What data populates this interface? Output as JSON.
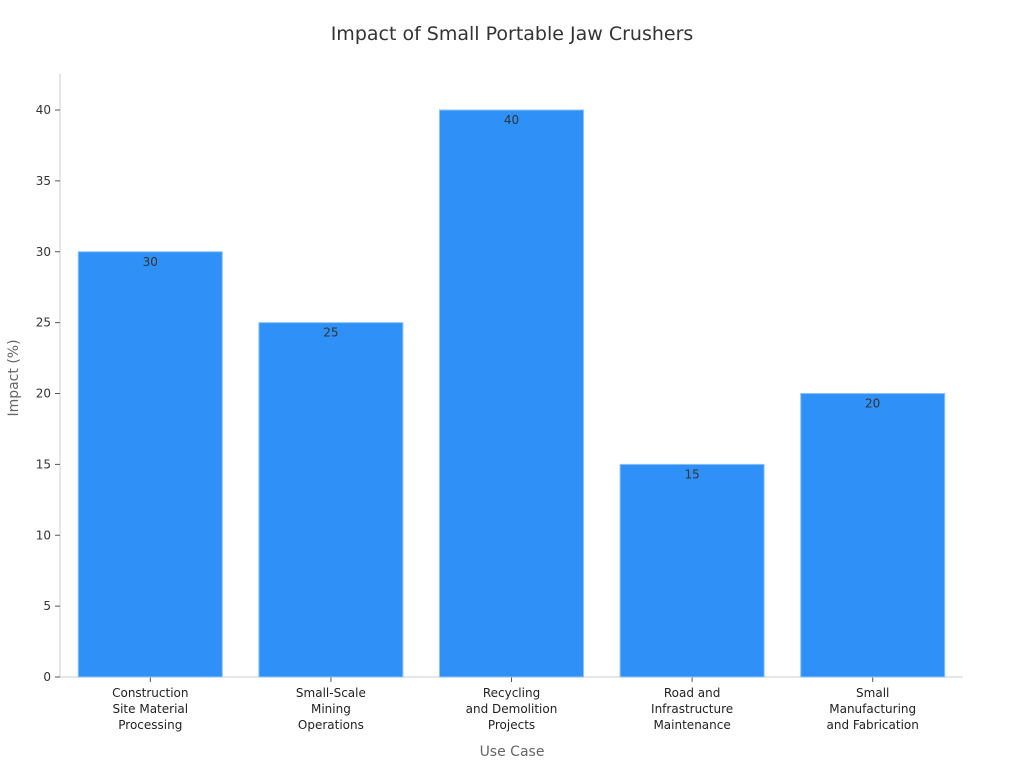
{
  "chart_data": {
    "type": "bar",
    "title": "Impact of Small Portable Jaw Crushers",
    "xlabel": "Use Case",
    "ylabel": "Impact (%)",
    "categories": [
      [
        "Construction",
        "Site Material",
        "Processing"
      ],
      [
        "Small-Scale",
        "Mining",
        "Operations"
      ],
      [
        "Recycling",
        "and Demolition",
        "Projects"
      ],
      [
        "Road and",
        "Infrastructure",
        "Maintenance"
      ],
      [
        "Small",
        "Manufacturing",
        "and Fabrication"
      ]
    ],
    "values": [
      30,
      25,
      40,
      15,
      20
    ],
    "ylim": [
      0,
      42
    ],
    "yticks": [
      0,
      5,
      10,
      15,
      20,
      25,
      30,
      35,
      40
    ],
    "grid": false,
    "bar_color": "#2f91f7",
    "bar_edge_color": "#8cc2f5"
  }
}
